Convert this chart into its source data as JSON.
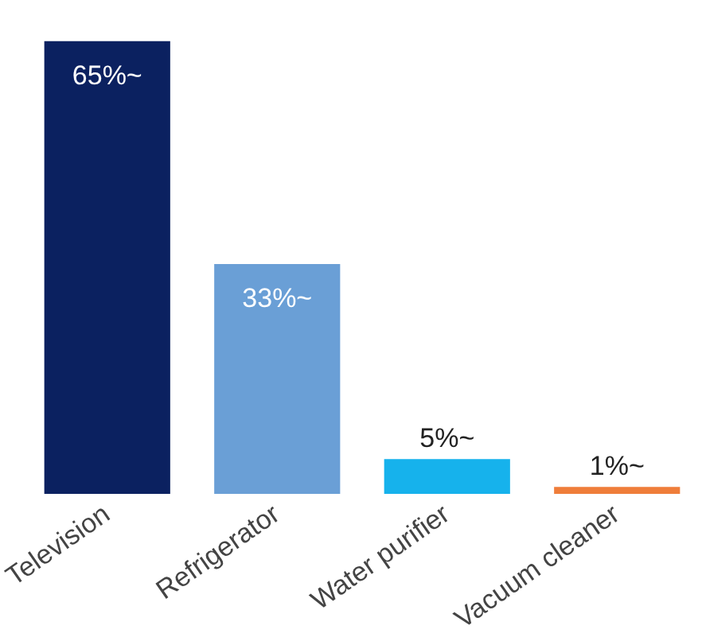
{
  "chart_data": {
    "type": "bar",
    "categories": [
      "Television",
      "Refrigerator",
      "Water purifier",
      "Vacuum cleaner"
    ],
    "values": [
      65,
      33,
      5,
      1
    ],
    "value_labels": [
      "65%~",
      "33%~",
      "5%~",
      "1%~"
    ],
    "colors": [
      "#0b2160",
      "#6a9fd6",
      "#16b2ec",
      "#ef7d3a"
    ],
    "grid": false,
    "legend": false
  }
}
